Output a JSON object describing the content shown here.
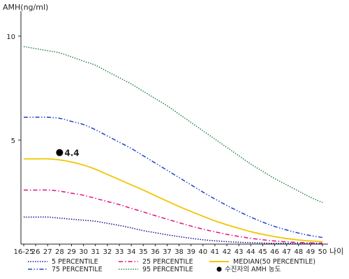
{
  "chart_data": {
    "type": "line",
    "ylabel": "AMH(ng/ml)",
    "xlabel": "나이",
    "categories": [
      "16-25",
      "26",
      "27",
      "28",
      "29",
      "30",
      "31",
      "32",
      "33",
      "34",
      "35",
      "36",
      "37",
      "38",
      "39",
      "40",
      "41",
      "42",
      "43",
      "44",
      "45",
      "46",
      "47",
      "48",
      "49",
      "50"
    ],
    "y_ticks": [
      5,
      10
    ],
    "ylim": [
      0,
      11
    ],
    "grid": false,
    "legend_position": "bottom",
    "series": [
      {
        "name": "5 PERCENTILE",
        "color": "#00008b",
        "dash": "dotted",
        "values": [
          1.3,
          1.3,
          1.3,
          1.25,
          1.2,
          1.15,
          1.1,
          1.0,
          0.9,
          0.78,
          0.65,
          0.55,
          0.45,
          0.36,
          0.28,
          0.21,
          0.16,
          0.12,
          0.09,
          0.07,
          0.05,
          0.04,
          0.04,
          0.03,
          0.03,
          0.03
        ]
      },
      {
        "name": "25 PERCENTILE",
        "color": "#e0107c",
        "dash": "dashdot",
        "values": [
          2.6,
          2.6,
          2.6,
          2.55,
          2.45,
          2.35,
          2.2,
          2.05,
          1.9,
          1.72,
          1.55,
          1.37,
          1.2,
          1.03,
          0.87,
          0.72,
          0.59,
          0.47,
          0.37,
          0.28,
          0.21,
          0.15,
          0.11,
          0.08,
          0.06,
          0.05
        ]
      },
      {
        "name": "MEDIAN(50 PERCENTILE)",
        "color": "#f2c500",
        "dash": "solid",
        "values": [
          4.1,
          4.1,
          4.1,
          4.05,
          3.95,
          3.8,
          3.6,
          3.35,
          3.1,
          2.85,
          2.6,
          2.33,
          2.07,
          1.81,
          1.57,
          1.34,
          1.12,
          0.93,
          0.76,
          0.6,
          0.47,
          0.36,
          0.27,
          0.2,
          0.15,
          0.12
        ]
      },
      {
        "name": "75 PERCENTILE",
        "color": "#1e40c8",
        "dash": "dashdotdot",
        "values": [
          6.1,
          6.1,
          6.1,
          6.05,
          5.9,
          5.75,
          5.5,
          5.2,
          4.9,
          4.6,
          4.25,
          3.9,
          3.55,
          3.2,
          2.85,
          2.5,
          2.17,
          1.86,
          1.57,
          1.3,
          1.06,
          0.85,
          0.68,
          0.53,
          0.41,
          0.32
        ]
      },
      {
        "name": "95 PERCENTILE",
        "color": "#1a7a3a",
        "dash": "dotted",
        "values": [
          9.5,
          9.4,
          9.3,
          9.2,
          9.0,
          8.8,
          8.6,
          8.3,
          8.0,
          7.7,
          7.35,
          7.0,
          6.65,
          6.25,
          5.85,
          5.45,
          5.05,
          4.65,
          4.25,
          3.85,
          3.5,
          3.15,
          2.85,
          2.55,
          2.25,
          2.0
        ]
      }
    ],
    "marker": {
      "name": "수진자의 AMH 농도",
      "x": "28",
      "y": 4.4,
      "label": "4.4",
      "color": "#000000"
    }
  }
}
